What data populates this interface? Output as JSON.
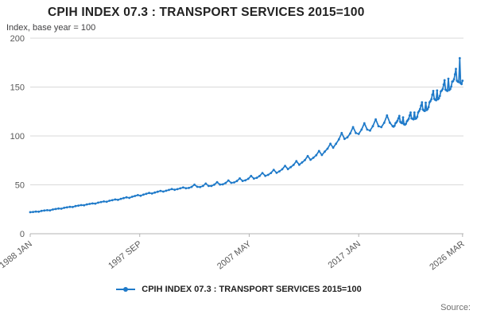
{
  "header": {
    "title": "CPIH INDEX 07.3 : TRANSPORT SERVICES 2015=100",
    "subtitle": "Index, base year = 100"
  },
  "legend": {
    "label": "CPIH INDEX 07.3 : TRANSPORT SERVICES 2015=100"
  },
  "footer": {
    "source_label": "Source:"
  },
  "chart_data": {
    "type": "line",
    "title": "CPIH INDEX 07.3 : TRANSPORT SERVICES 2015=100",
    "subtitle": "Index, base year = 100",
    "xlabel": "",
    "ylabel": "Index, base year = 100",
    "xlim": [
      1988.0,
      2026.25
    ],
    "ylim": [
      0,
      200
    ],
    "grid": true,
    "legend_position": "bottom",
    "line_color": "#1f7ac9",
    "grid_color": "#d9d9d9",
    "axis_color": "#b3b3b3",
    "tick_text_color": "#595959",
    "y_ticks": [
      0,
      50,
      100,
      150,
      200
    ],
    "x_ticks": [
      {
        "pos": 1988.0,
        "label": "1988 JAN"
      },
      {
        "pos": 1997.667,
        "label": "1997 SEP"
      },
      {
        "pos": 2007.333,
        "label": "2007 MAY"
      },
      {
        "pos": 2017.0,
        "label": "2017 JAN"
      },
      {
        "pos": 2026.167,
        "label": "2026 MAR"
      }
    ],
    "series": [
      {
        "name": "CPIH INDEX 07.3 : TRANSPORT SERVICES 2015=100",
        "points": [
          [
            1988,
            22.0
          ],
          [
            1988.25,
            22.3
          ],
          [
            1988.5,
            22.7
          ],
          [
            1988.75,
            22.5
          ],
          [
            1989,
            23.3
          ],
          [
            1989.25,
            23.7
          ],
          [
            1989.5,
            24.1
          ],
          [
            1989.75,
            23.9
          ],
          [
            1990,
            24.8
          ],
          [
            1990.25,
            25.3
          ],
          [
            1990.5,
            25.8
          ],
          [
            1990.75,
            25.6
          ],
          [
            1991,
            26.5
          ],
          [
            1991.25,
            27.0
          ],
          [
            1991.5,
            27.5
          ],
          [
            1991.75,
            27.3
          ],
          [
            1992,
            28.3
          ],
          [
            1992.25,
            28.8
          ],
          [
            1992.5,
            29.3
          ],
          [
            1992.75,
            29.1
          ],
          [
            1993,
            30.0
          ],
          [
            1993.25,
            30.5
          ],
          [
            1993.5,
            31.0
          ],
          [
            1993.75,
            30.8
          ],
          [
            1994,
            31.8
          ],
          [
            1994.25,
            32.4
          ],
          [
            1994.5,
            33.0
          ],
          [
            1994.75,
            32.7
          ],
          [
            1995,
            33.7
          ],
          [
            1995.25,
            34.3
          ],
          [
            1995.5,
            35.0
          ],
          [
            1995.75,
            34.6
          ],
          [
            1996,
            35.7
          ],
          [
            1996.25,
            36.4
          ],
          [
            1996.5,
            37.2
          ],
          [
            1996.75,
            36.7
          ],
          [
            1997,
            37.8
          ],
          [
            1997.25,
            38.6
          ],
          [
            1997.5,
            39.5
          ],
          [
            1997.75,
            38.9
          ],
          [
            1998,
            40.0
          ],
          [
            1998.25,
            40.8
          ],
          [
            1998.5,
            41.7
          ],
          [
            1998.75,
            41.1
          ],
          [
            1999,
            42.1
          ],
          [
            1999.25,
            42.9
          ],
          [
            1999.5,
            43.8
          ],
          [
            1999.75,
            43.1
          ],
          [
            2000,
            44.0
          ],
          [
            2000.25,
            44.8
          ],
          [
            2000.5,
            45.7
          ],
          [
            2000.75,
            45.0
          ],
          [
            2001,
            45.6
          ],
          [
            2001.25,
            46.4
          ],
          [
            2001.5,
            47.3
          ],
          [
            2001.75,
            46.5
          ],
          [
            2002,
            46.8
          ],
          [
            2002.25,
            47.9
          ],
          [
            2002.5,
            50.2
          ],
          [
            2002.75,
            48.0
          ],
          [
            2003,
            47.7
          ],
          [
            2003.25,
            48.9
          ],
          [
            2003.5,
            51.3
          ],
          [
            2003.75,
            48.9
          ],
          [
            2004,
            48.9
          ],
          [
            2004.25,
            50.2
          ],
          [
            2004.5,
            52.7
          ],
          [
            2004.75,
            50.3
          ],
          [
            2005,
            50.5
          ],
          [
            2005.25,
            51.9
          ],
          [
            2005.5,
            54.5
          ],
          [
            2005.75,
            52.0
          ],
          [
            2006,
            52.4
          ],
          [
            2006.25,
            53.9
          ],
          [
            2006.5,
            56.6
          ],
          [
            2006.75,
            54.0
          ],
          [
            2007,
            54.6
          ],
          [
            2007.25,
            56.2
          ],
          [
            2007.5,
            59.1
          ],
          [
            2007.75,
            56.4
          ],
          [
            2008,
            57.2
          ],
          [
            2008.25,
            59.0
          ],
          [
            2008.5,
            62.1
          ],
          [
            2008.75,
            59.2
          ],
          [
            2009,
            60.2
          ],
          [
            2009.25,
            62.1
          ],
          [
            2009.5,
            65.4
          ],
          [
            2009.75,
            62.3
          ],
          [
            2010,
            63.8
          ],
          [
            2010.25,
            65.9
          ],
          [
            2010.5,
            69.4
          ],
          [
            2010.75,
            66.1
          ],
          [
            2011,
            68.1
          ],
          [
            2011.25,
            70.4
          ],
          [
            2011.5,
            74.2
          ],
          [
            2011.75,
            70.6
          ],
          [
            2012,
            72.9
          ],
          [
            2012.25,
            75.3
          ],
          [
            2012.5,
            79.4
          ],
          [
            2012.75,
            75.6
          ],
          [
            2013,
            77.7
          ],
          [
            2013.25,
            80.3
          ],
          [
            2013.5,
            84.6
          ],
          [
            2013.75,
            80.5
          ],
          [
            2014,
            84.0
          ],
          [
            2014.25,
            87.0
          ],
          [
            2014.5,
            92.0
          ],
          [
            2014.75,
            88.0
          ],
          [
            2015,
            92.0
          ],
          [
            2015.25,
            96.5
          ],
          [
            2015.5,
            103.0
          ],
          [
            2015.75,
            97.0
          ],
          [
            2016,
            98.5
          ],
          [
            2016.25,
            102.5
          ],
          [
            2016.5,
            109.0
          ],
          [
            2016.75,
            103.0
          ],
          [
            2017,
            102.0
          ],
          [
            2017.25,
            106.5
          ],
          [
            2017.5,
            113.0
          ],
          [
            2017.75,
            106.5
          ],
          [
            2018,
            105.5
          ],
          [
            2018.25,
            110.0
          ],
          [
            2018.5,
            117.0
          ],
          [
            2018.75,
            110.0
          ],
          [
            2019,
            109.0
          ],
          [
            2019.25,
            113.5
          ],
          [
            2019.5,
            121.0
          ],
          [
            2019.75,
            113.5
          ],
          [
            2020,
            110.0
          ],
          [
            2020.083,
            109.5
          ],
          [
            2020.167,
            110.5
          ],
          [
            2020.25,
            113.0
          ],
          [
            2020.333,
            114.0
          ],
          [
            2020.417,
            115.5
          ],
          [
            2020.5,
            118.0
          ],
          [
            2020.583,
            120.5
          ],
          [
            2020.667,
            114.5
          ],
          [
            2020.75,
            113.5
          ],
          [
            2020.833,
            113.0
          ],
          [
            2020.917,
            119.0
          ],
          [
            2021,
            112.0
          ],
          [
            2021.083,
            111.5
          ],
          [
            2021.167,
            112.5
          ],
          [
            2021.25,
            115.0
          ],
          [
            2021.333,
            116.0
          ],
          [
            2021.417,
            117.5
          ],
          [
            2021.5,
            121.0
          ],
          [
            2021.583,
            124.0
          ],
          [
            2021.667,
            118.0
          ],
          [
            2021.75,
            117.5
          ],
          [
            2021.833,
            117.0
          ],
          [
            2021.917,
            124.0
          ],
          [
            2022,
            117.5
          ],
          [
            2022.083,
            118.0
          ],
          [
            2022.167,
            119.5
          ],
          [
            2022.25,
            124.0
          ],
          [
            2022.333,
            125.5
          ],
          [
            2022.417,
            127.5
          ],
          [
            2022.5,
            131.0
          ],
          [
            2022.583,
            134.5
          ],
          [
            2022.667,
            127.0
          ],
          [
            2022.75,
            126.0
          ],
          [
            2022.833,
            125.5
          ],
          [
            2022.917,
            134.0
          ],
          [
            2023,
            126.5
          ],
          [
            2023.083,
            127.5
          ],
          [
            2023.167,
            129.5
          ],
          [
            2023.25,
            134.5
          ],
          [
            2023.333,
            135.5
          ],
          [
            2023.417,
            137.5
          ],
          [
            2023.5,
            142.0
          ],
          [
            2023.583,
            146.0
          ],
          [
            2023.667,
            138.0
          ],
          [
            2023.75,
            137.0
          ],
          [
            2023.833,
            136.5
          ],
          [
            2023.917,
            146.5
          ],
          [
            2024,
            137.5
          ],
          [
            2024.083,
            138.5
          ],
          [
            2024.167,
            141.0
          ],
          [
            2024.25,
            145.5
          ],
          [
            2024.333,
            146.5
          ],
          [
            2024.417,
            148.0
          ],
          [
            2024.5,
            152.5
          ],
          [
            2024.583,
            157.0
          ],
          [
            2024.667,
            147.5
          ],
          [
            2024.75,
            146.5
          ],
          [
            2024.833,
            146.0
          ],
          [
            2024.917,
            158.5
          ],
          [
            2025,
            147.0
          ],
          [
            2025.083,
            148.0
          ],
          [
            2025.167,
            150.5
          ],
          [
            2025.25,
            155.5
          ],
          [
            2025.333,
            156.0
          ],
          [
            2025.417,
            158.0
          ],
          [
            2025.5,
            163.0
          ],
          [
            2025.583,
            168.5
          ],
          [
            2025.667,
            156.5
          ],
          [
            2025.75,
            155.5
          ],
          [
            2025.833,
            155.0
          ],
          [
            2025.917,
            179.5
          ],
          [
            2026,
            154.0
          ],
          [
            2026.083,
            153.0
          ],
          [
            2026.167,
            156.5
          ]
        ]
      }
    ]
  }
}
